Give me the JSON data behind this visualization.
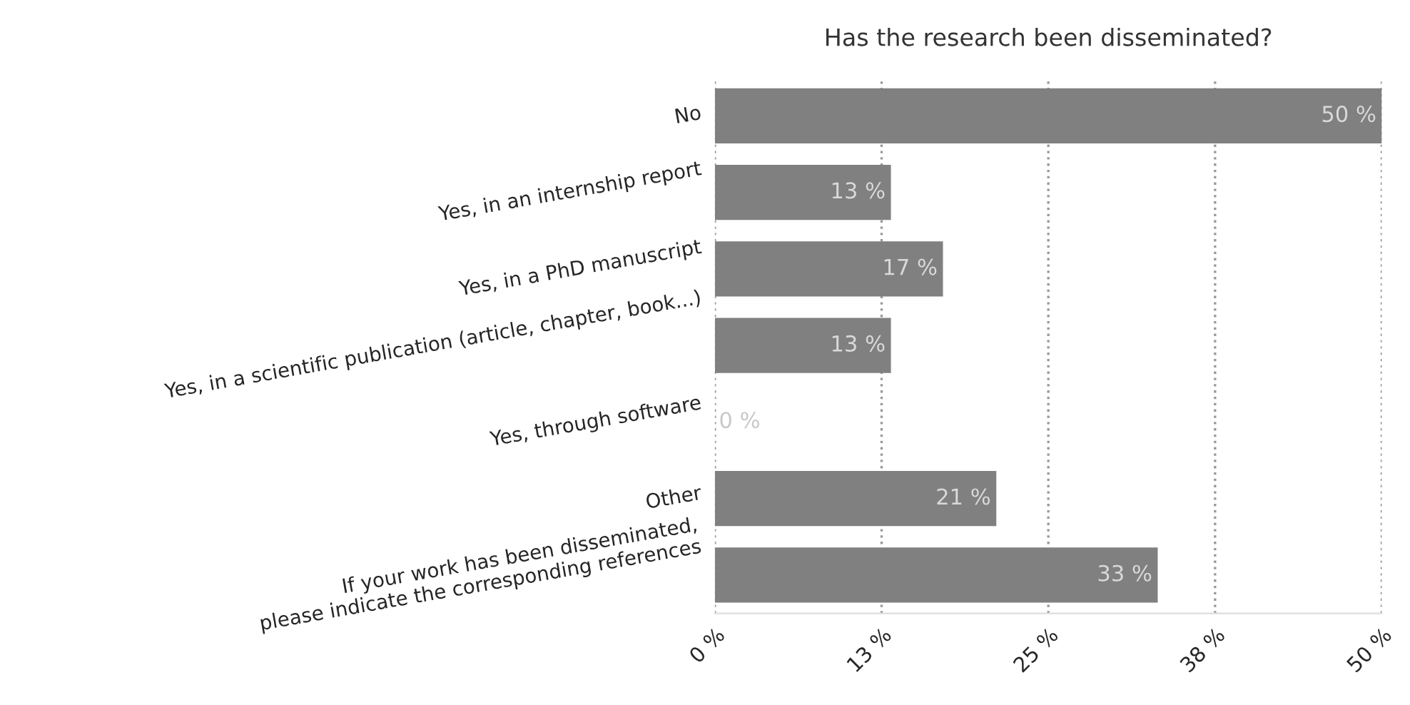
{
  "chart_data": {
    "type": "bar",
    "orientation": "horizontal",
    "title": "Has the research been disseminated?",
    "categories": [
      "No",
      "Yes, in an internship report",
      "Yes, in a PhD manuscript",
      "Yes, in a scientific publication (article, chapter, book...)",
      "Yes, through software",
      "Other",
      "If your work has been disseminated,\nplease indicate the corresponding references"
    ],
    "values": [
      50,
      13.2,
      17.1,
      13.2,
      0,
      21.1,
      33.2
    ],
    "value_labels": [
      "50 %",
      "13 %",
      "17 %",
      "13 %",
      "0 %",
      "21 %",
      "33 %"
    ],
    "color": "#808080",
    "xlim": [
      0,
      50
    ],
    "xticks": [
      {
        "value": 0,
        "label": "0 %"
      },
      {
        "value": 12.5,
        "label": "13 %"
      },
      {
        "value": 25,
        "label": "25 %"
      },
      {
        "value": 37.5,
        "label": "38 %"
      },
      {
        "value": 50,
        "label": "50 %"
      }
    ],
    "grid": "x",
    "legend": false
  }
}
